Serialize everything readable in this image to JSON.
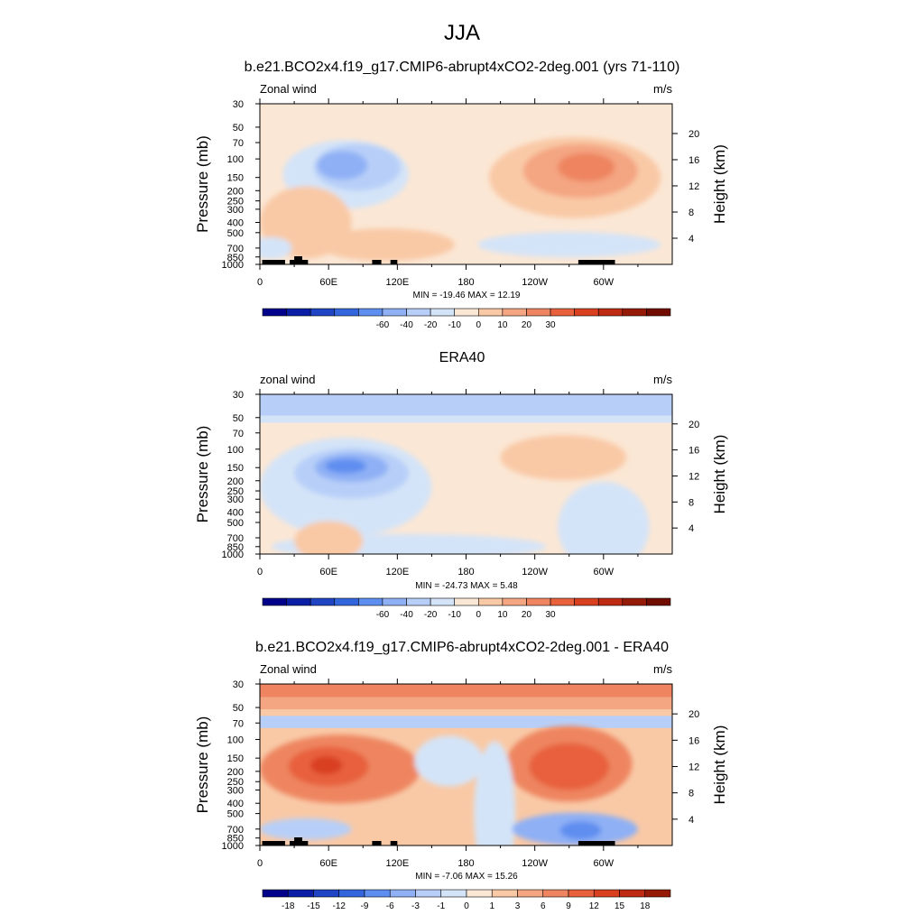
{
  "figure": {
    "title": "JJA"
  },
  "chart_data": [
    {
      "type": "heatmap",
      "title": "b.e21.BCO2x4.f19_g17.CMIP6-abrupt4xCO2-2deg.001 (yrs 71-110)",
      "left_label": "Zonal wind",
      "right_label": "m/s",
      "x": {
        "ticks": [
          "0",
          "60E",
          "120E",
          "180",
          "120W",
          "60W"
        ],
        "lon_values": [
          0,
          60,
          120,
          180,
          240,
          300
        ],
        "range": [
          0,
          360
        ]
      },
      "y_left": {
        "label": "Pressure (mb)",
        "ticks": [
          30,
          50,
          70,
          100,
          150,
          200,
          250,
          300,
          400,
          500,
          700,
          850,
          1000
        ],
        "scale": "log",
        "range": [
          1000,
          30
        ]
      },
      "y_right": {
        "label": "Height (km)",
        "ticks": [
          4,
          8,
          12,
          16,
          20
        ]
      },
      "stats": "MIN = -19.46  MAX =  12.19",
      "colorbar": {
        "labels": [
          "-60",
          "-40",
          "-20",
          "-10",
          "0",
          "10",
          "20",
          "30"
        ],
        "colors": [
          "#00008b",
          "#0a1fa6",
          "#1f44c4",
          "#3366dd",
          "#5e8ef0",
          "#8fb0f5",
          "#b7cff8",
          "#d4e4f8",
          "#fbe7d5",
          "#f9c9a6",
          "#f4a582",
          "#ee8560",
          "#e8603c",
          "#d94020",
          "#be2a12",
          "#961a08",
          "#700c00"
        ]
      },
      "features": [
        {
          "name": "easterly jet core",
          "lon": 70,
          "pressure": 120,
          "value": -15
        },
        {
          "name": "westerly jet core",
          "lon": 275,
          "pressure": 130,
          "value": 12
        }
      ]
    },
    {
      "type": "heatmap",
      "title": "ERA40",
      "left_label": "zonal wind",
      "right_label": "m/s",
      "x": {
        "ticks": [
          "0",
          "60E",
          "120E",
          "180",
          "120W",
          "60W"
        ],
        "lon_values": [
          0,
          60,
          120,
          180,
          240,
          300
        ],
        "range": [
          0,
          360
        ]
      },
      "y_left": {
        "label": "Pressure (mb)",
        "ticks": [
          30,
          50,
          70,
          100,
          150,
          200,
          250,
          300,
          400,
          500,
          700,
          850,
          1000
        ],
        "scale": "log",
        "range": [
          1000,
          30
        ]
      },
      "y_right": {
        "label": "Height (km)",
        "ticks": [
          4,
          8,
          12,
          16,
          20
        ]
      },
      "stats": "MIN = -24.73  MAX =   5.48",
      "colorbar": {
        "labels": [
          "-60",
          "-40",
          "-20",
          "-10",
          "0",
          "10",
          "20",
          "30"
        ],
        "colors": [
          "#00008b",
          "#0a1fa6",
          "#1f44c4",
          "#3366dd",
          "#5e8ef0",
          "#8fb0f5",
          "#b7cff8",
          "#d4e4f8",
          "#fbe7d5",
          "#f9c9a6",
          "#f4a582",
          "#ee8560",
          "#e8603c",
          "#d94020",
          "#be2a12",
          "#961a08",
          "#700c00"
        ]
      },
      "features": [
        {
          "name": "easterly jet core",
          "lon": 80,
          "pressure": 150,
          "value": -22
        },
        {
          "name": "weak westerlies",
          "lon": 260,
          "pressure": 120,
          "value": 4
        }
      ]
    },
    {
      "type": "heatmap",
      "title": "b.e21.BCO2x4.f19_g17.CMIP6-abrupt4xCO2-2deg.001 - ERA40",
      "left_label": "Zonal wind",
      "right_label": "m/s",
      "x": {
        "ticks": [
          "0",
          "60E",
          "120E",
          "180",
          "120W",
          "60W"
        ],
        "lon_values": [
          0,
          60,
          120,
          180,
          240,
          300
        ],
        "range": [
          0,
          360
        ]
      },
      "y_left": {
        "label": "Pressure (mb)",
        "ticks": [
          30,
          50,
          70,
          100,
          150,
          200,
          250,
          300,
          400,
          500,
          700,
          850,
          1000
        ],
        "scale": "log",
        "range": [
          1000,
          30
        ]
      },
      "y_right": {
        "label": "Height (km)",
        "ticks": [
          4,
          8,
          12,
          16,
          20
        ]
      },
      "stats": "MIN = -7.06  MAX =  15.26",
      "colorbar": {
        "labels": [
          "-18",
          "-15",
          "-12",
          "-9",
          "-6",
          "-3",
          "-1",
          "0",
          "1",
          "3",
          "6",
          "9",
          "12",
          "15",
          "18"
        ],
        "colors": [
          "#00008b",
          "#0a1fa6",
          "#1f44c4",
          "#3366dd",
          "#5e8ef0",
          "#8fb0f5",
          "#b7cff8",
          "#d4e4f8",
          "#fbe7d5",
          "#f9c9a6",
          "#f4a582",
          "#ee8560",
          "#e8603c",
          "#d94020",
          "#be2a12",
          "#961a08"
        ]
      },
      "features": [
        {
          "name": "positive difference max",
          "lon": 60,
          "pressure": 180,
          "value": 15
        },
        {
          "name": "positive difference",
          "lon": 270,
          "pressure": 170,
          "value": 12
        },
        {
          "name": "negative difference",
          "lon": 280,
          "pressure": 650,
          "value": -7
        }
      ]
    }
  ]
}
